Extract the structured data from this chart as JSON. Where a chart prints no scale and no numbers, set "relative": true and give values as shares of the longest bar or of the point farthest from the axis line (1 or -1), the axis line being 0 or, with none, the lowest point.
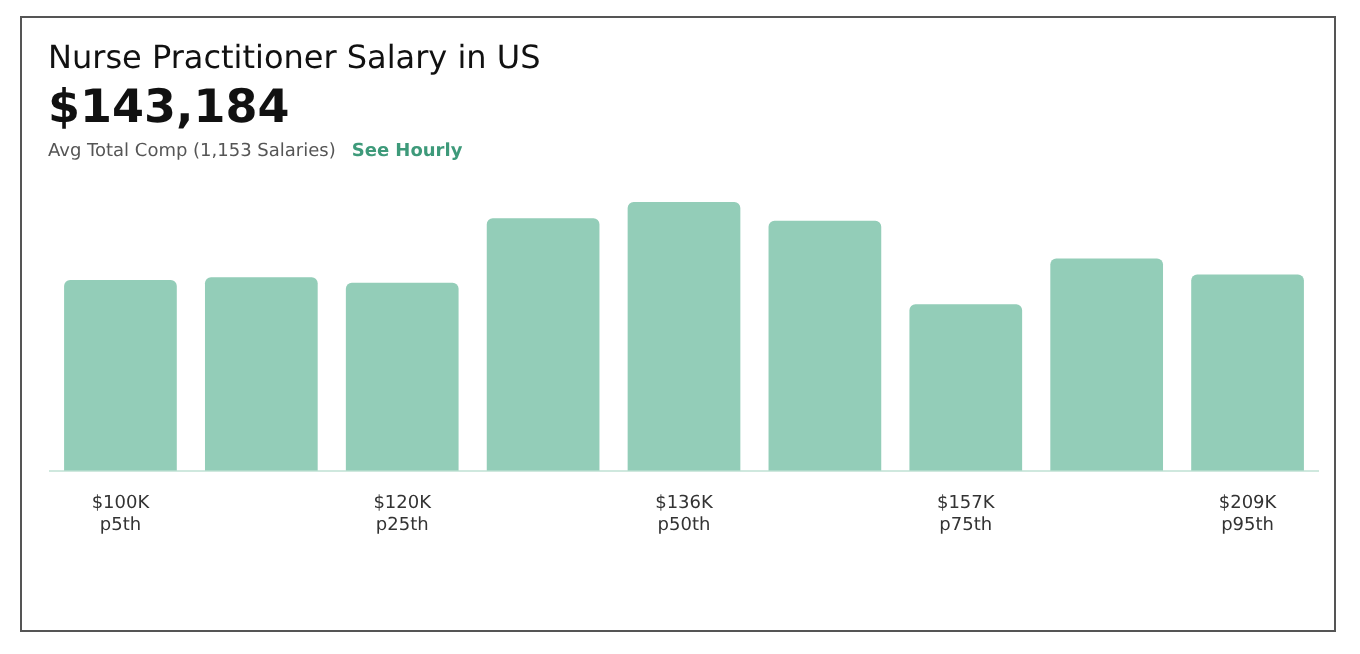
{
  "chart_data": {
    "type": "bar",
    "title": "Nurse Practitioner Salary in US",
    "subtitle": "$143,184",
    "annotations": [
      "Avg Total Comp (1,153 Salaries)",
      "See Hourly"
    ],
    "categories": [
      "$100K\np5th",
      null,
      "$120K\np25th",
      null,
      "$136K\np50th",
      null,
      "$157K\np75th",
      null,
      "$209K\np95th"
    ],
    "values": [
      0.71,
      0.72,
      0.7,
      0.94,
      1,
      0.93,
      0.62,
      0.79,
      0.73
    ],
    "color": "#93cdb8",
    "relative": true,
    "grid": false,
    "legend": false
  }
}
